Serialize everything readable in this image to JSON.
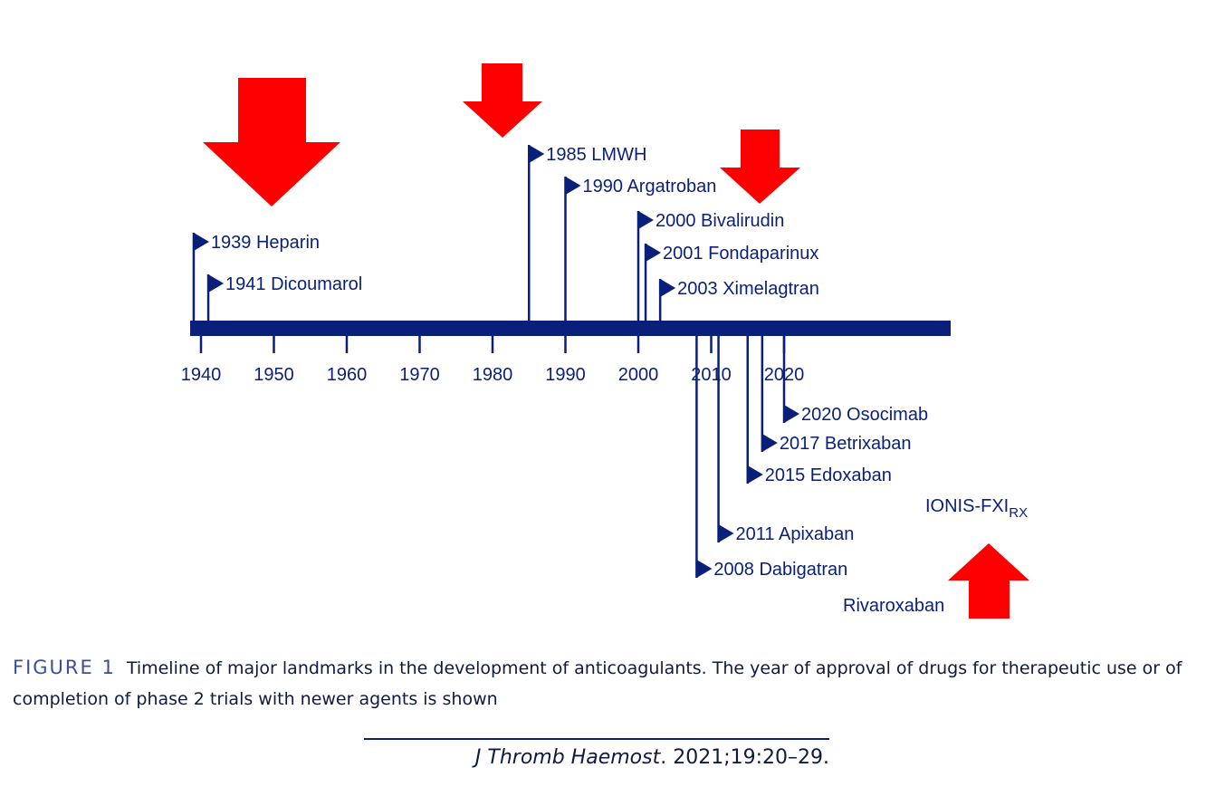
{
  "timeline": {
    "axis_ticks": [
      "1940",
      "1950",
      "1960",
      "1970",
      "1980",
      "1990",
      "2000",
      "2010",
      "2020"
    ],
    "events_above": [
      {
        "year": 1939,
        "label": "1939 Heparin",
        "level": 2
      },
      {
        "year": 1941,
        "label": "1941 Dicoumarol",
        "level": 1
      },
      {
        "year": 1985,
        "label": "1985 LMWH",
        "level": 6
      },
      {
        "year": 1990,
        "label": "1990 Argatroban",
        "level": 5
      },
      {
        "year": 2000,
        "label": "2000 Bivalirudin",
        "level": 4
      },
      {
        "year": 2001,
        "label": "2001 Fondaparinux",
        "level": 3
      },
      {
        "year": 2003,
        "label": "2003 Ximelagtran",
        "level": 2
      }
    ],
    "events_below": [
      {
        "year": 2020,
        "label": "2020 Osocimab",
        "level": 1
      },
      {
        "year": 2017,
        "label": "2017 Betrixaban",
        "level": 2
      },
      {
        "year": 2015,
        "label": "2015 Edoxaban",
        "level": 3
      },
      {
        "year": 2011,
        "label": "2011 Apixaban",
        "level": 5
      },
      {
        "year": 2008,
        "label": "2008 Dabigatran",
        "level": 6
      }
    ],
    "extra_labels": {
      "ionis_main": "IONIS-FXI",
      "ionis_sub": "RX",
      "rivaroxaban": "Rivaroxaban"
    },
    "arrow_color": "#ff0000",
    "line_color": "#0a1f7a"
  },
  "caption": {
    "figure_label": "FIGURE 1",
    "text": "Timeline of major landmarks in the development of anticoagulants. The year of approval of drugs for therapeutic use or of completion of phase 2 trials with newer agents is shown"
  },
  "citation": {
    "journal": "J Thromb Haemost",
    "details": ". 2021;19:20–29."
  }
}
